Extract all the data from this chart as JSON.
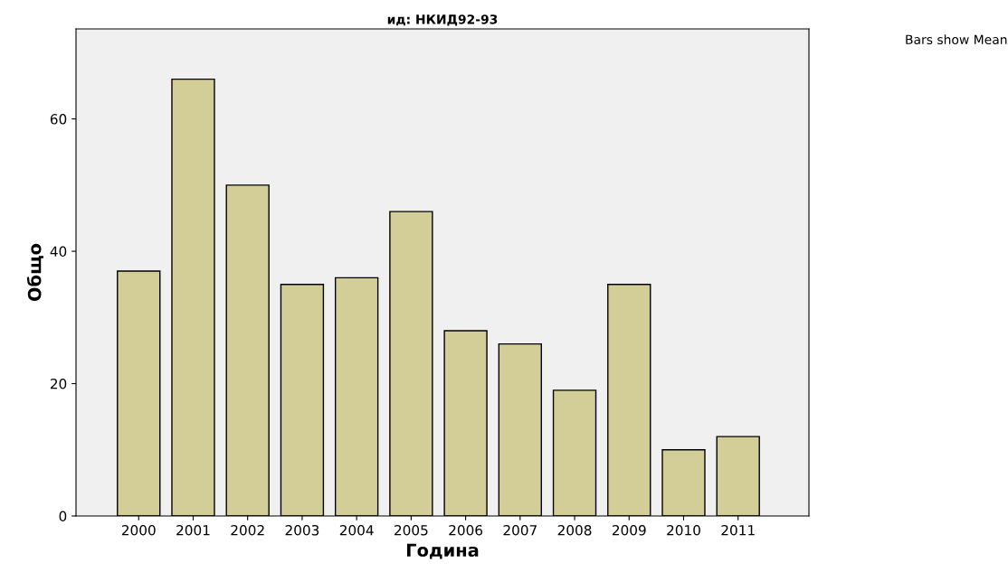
{
  "chart_data": {
    "type": "bar",
    "title": "ид: НКИД92-93",
    "xlabel": "Година",
    "ylabel": "Общо",
    "categories": [
      "2000",
      "2001",
      "2002",
      "2003",
      "2004",
      "2005",
      "2006",
      "2007",
      "2008",
      "2009",
      "2010",
      "2011"
    ],
    "values": [
      37,
      66,
      50,
      35,
      36,
      46,
      28,
      26,
      19,
      35,
      10,
      12
    ],
    "color": "#d3ce97",
    "ylim": [
      0,
      73.6
    ],
    "yticks": [
      0,
      20,
      40,
      60
    ],
    "grid": false,
    "legend": false,
    "annotations": [
      "Bars show Mean"
    ]
  }
}
